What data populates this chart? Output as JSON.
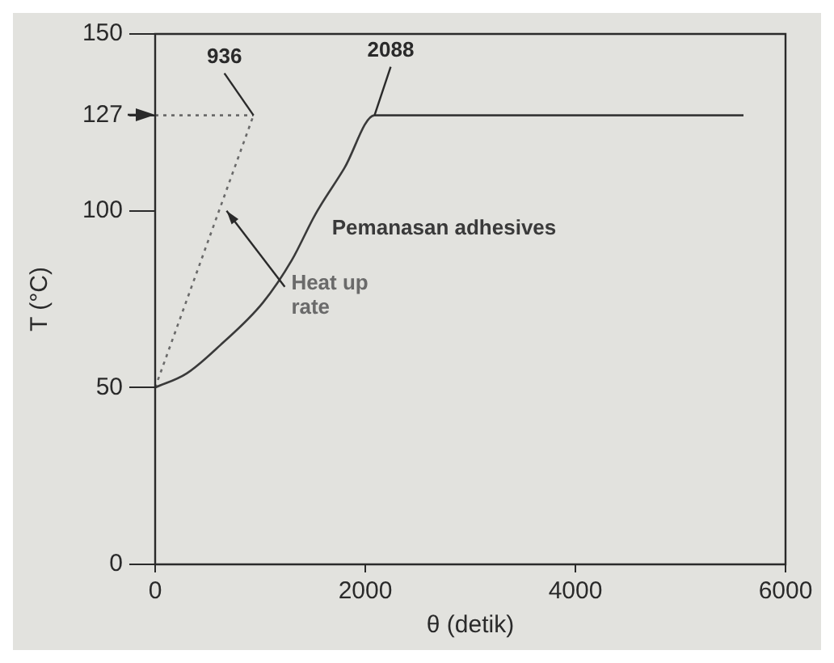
{
  "chart_data": {
    "type": "line",
    "xlabel": "θ (detik)",
    "ylabel": "T (°C)",
    "xlim": [
      0,
      6000
    ],
    "xticks": [
      0,
      2000,
      4000,
      6000
    ],
    "ylim": [
      0,
      150
    ],
    "yticks": [
      0,
      50,
      100,
      127,
      150
    ],
    "grid": false,
    "legend": false,
    "marker": "none",
    "series": [
      {
        "name": "Pemanasan adhesives",
        "color": "#3a3a3a",
        "line_style": "solid",
        "x": [
          0,
          300,
          620,
          1025,
          1300,
          1525,
          1800,
          2088,
          5600
        ],
        "values": [
          50,
          54,
          62,
          74,
          86,
          99,
          112,
          127,
          127
        ]
      },
      {
        "name": "Heat up rate",
        "color": "#6a6a6a",
        "line_style": "dotted",
        "x": [
          0,
          936
        ],
        "values": [
          50,
          127
        ]
      },
      {
        "color": "#6a6a6a",
        "line_style": "dotted",
        "x": [
          0,
          936
        ],
        "values": [
          127,
          127
        ]
      }
    ],
    "annotations": [
      {
        "text": "936",
        "x": 936,
        "y": 127
      },
      {
        "text": "2088",
        "x": 2088,
        "y": 127
      }
    ]
  }
}
